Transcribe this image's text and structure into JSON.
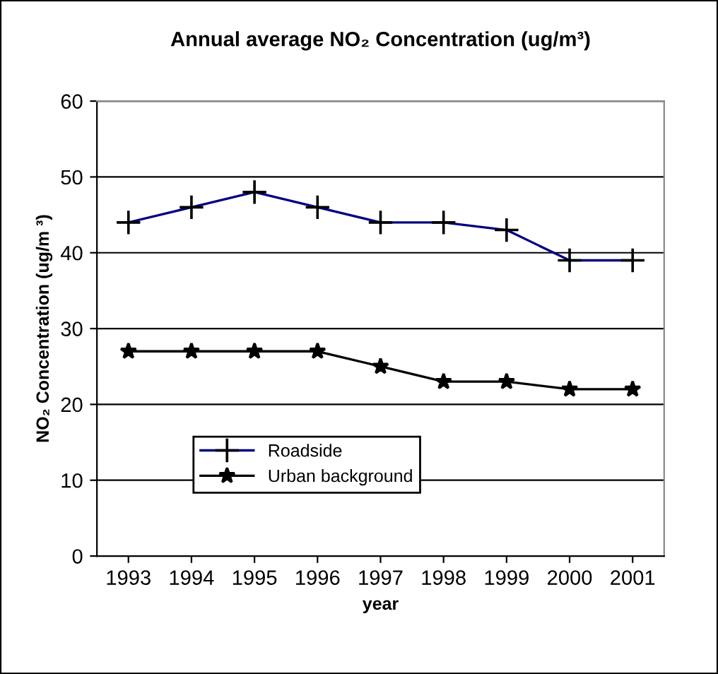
{
  "chart_data": {
    "type": "line",
    "title": "Annual average NO₂ Concentration (ug/m³)",
    "xlabel": "year",
    "ylabel": "NO₂ Concentration (ug/m ³)",
    "categories": [
      "1993",
      "1994",
      "1995",
      "1996",
      "1997",
      "1998",
      "1999",
      "2000",
      "2001"
    ],
    "series": [
      {
        "name": "Roadside",
        "color": "#000080",
        "marker": "cross",
        "values": [
          44,
          46,
          48,
          46,
          44,
          44,
          43,
          39,
          39
        ]
      },
      {
        "name": "Urban background",
        "color": "#000000",
        "marker": "star",
        "values": [
          27,
          27,
          27,
          27,
          25,
          23,
          23,
          22,
          22
        ]
      }
    ],
    "ylim": [
      0,
      60
    ],
    "yticks": [
      0,
      10,
      20,
      30,
      40,
      50,
      60
    ],
    "grid": "y",
    "legend": "bottom",
    "line_style": "solid"
  }
}
